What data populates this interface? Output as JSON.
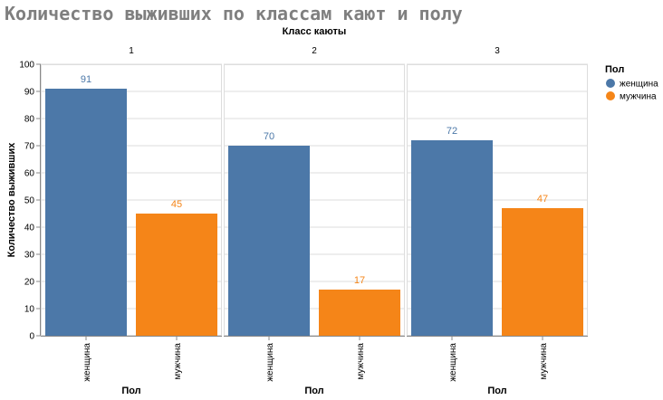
{
  "chart_data": {
    "type": "bar",
    "title": "Количество выживших по классам кают и полу",
    "facet_title": "Класс каюты",
    "facets": [
      "1",
      "2",
      "3"
    ],
    "categories": [
      "женщина",
      "мужчина"
    ],
    "xlabel": "Пол",
    "ylabel": "Количество выживших",
    "ylim": [
      0,
      100
    ],
    "yticks": [
      "0",
      "10",
      "20",
      "30",
      "40",
      "50",
      "60",
      "70",
      "80",
      "90",
      "100"
    ],
    "grid": true,
    "legend": {
      "title": "Пол",
      "position": "top-right",
      "items": [
        {
          "label": "женщина",
          "color": "#4c78a8"
        },
        {
          "label": "мужчина",
          "color": "#f58518"
        }
      ]
    },
    "values": {
      "1": [
        91,
        45
      ],
      "2": [
        70,
        17
      ],
      "3": [
        72,
        47
      ]
    }
  }
}
